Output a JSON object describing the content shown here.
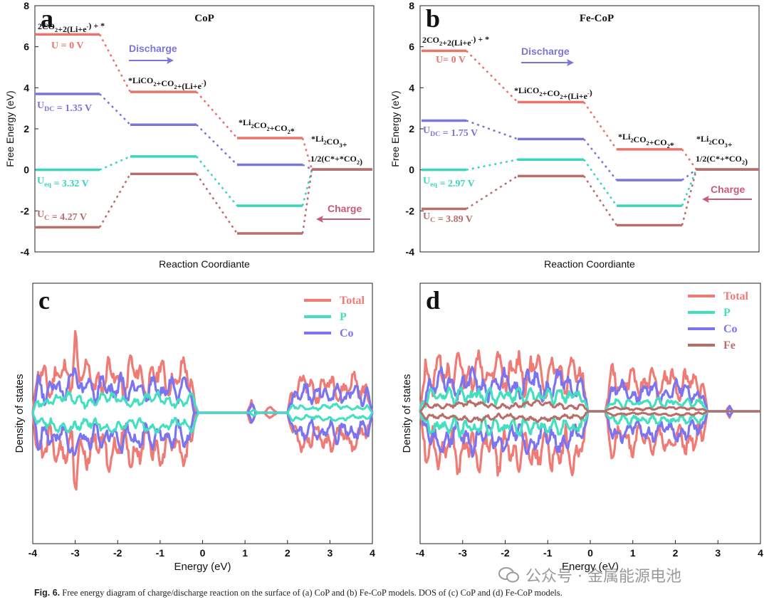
{
  "caption": {
    "label": "Fig. 6.",
    "text": "Free energy diagram of charge/discharge reaction on the surface of (a) CoP and (b) Fe-CoP models. DOS of (c) CoP and (d) Fe-CoP models."
  },
  "watermark": "公众号 · 金属能源电池",
  "colors": {
    "red": "#e8746c",
    "blue": "#7a75d8",
    "teal": "#38d6be",
    "brown": "#b86f6a",
    "total": "#f07a74",
    "p": "#43e0c0",
    "co": "#7b74f2",
    "fe": "#b86e68"
  },
  "chart_data": [
    {
      "panel": "a",
      "type": "free-energy-diagram",
      "title": "CoP",
      "xlabel": "Reaction Coordiante",
      "ylabel": "Free Energy (eV)",
      "ylim": [
        -4,
        8
      ],
      "yticks": [
        "-4",
        "-2",
        "0",
        "2",
        "4",
        "6",
        "8"
      ],
      "step_labels": [
        "2CO2+2(Li+e-) + *",
        "*LiCO2+CO2+(Li+e-)",
        "*Li2CO2+CO2*",
        "*Li2CO3+ 1/2(C*+*CO2)"
      ],
      "series": [
        {
          "name": "U = 0 V",
          "color": "red",
          "values": [
            6.6,
            3.8,
            1.55,
            0.02
          ]
        },
        {
          "name": "UDC = 1.35 V",
          "color": "blue",
          "values": [
            3.7,
            2.2,
            0.25,
            0.02
          ]
        },
        {
          "name": "Ueq = 3.32 V",
          "color": "teal",
          "values": [
            0.0,
            0.65,
            -1.75,
            0.02
          ]
        },
        {
          "name": "UC = 4.27 V",
          "color": "brown",
          "values": [
            -2.8,
            -0.2,
            -3.1,
            0.02
          ]
        }
      ],
      "arrows": {
        "discharge": "Discharge",
        "charge": "Charge"
      }
    },
    {
      "panel": "b",
      "type": "free-energy-diagram",
      "title": "Fe-CoP",
      "xlabel": "Reaction Coordiante",
      "ylabel": "Free Energy (eV)",
      "ylim": [
        -4,
        8
      ],
      "yticks": [
        "-4",
        "-2",
        "0",
        "2",
        "4",
        "6",
        "8"
      ],
      "step_labels": [
        "2CO2+2(Li+e-) + *",
        "*LiCO2+CO2+(Li+e-)",
        "*Li2CO2+CO2*",
        "*Li2CO3+ 1/2(C*+*CO2)"
      ],
      "series": [
        {
          "name": "U= 0 V",
          "color": "red",
          "values": [
            5.8,
            3.3,
            1.0,
            0.02
          ]
        },
        {
          "name": "UDC = 1.75 V",
          "color": "blue",
          "values": [
            2.4,
            1.5,
            -0.5,
            0.02
          ]
        },
        {
          "name": "Ueq = 2.97 V",
          "color": "teal",
          "values": [
            0.0,
            0.5,
            -1.75,
            0.02
          ]
        },
        {
          "name": "UC = 3.89 V",
          "color": "brown",
          "values": [
            -1.9,
            -0.3,
            -2.7,
            0.02
          ]
        }
      ],
      "arrows": {
        "discharge": "Discharge",
        "charge": "Charge"
      }
    },
    {
      "panel": "c",
      "type": "line",
      "title": "",
      "xlabel": "Energy (eV)",
      "ylabel": "Density of states",
      "xlim": [
        -4,
        4
      ],
      "xticks": [
        "-4",
        "-3",
        "-2",
        "-1",
        "0",
        "1",
        "2",
        "3",
        "4"
      ],
      "legend": [
        "Total",
        "P",
        "Co"
      ]
    },
    {
      "panel": "d",
      "type": "line",
      "title": "",
      "xlabel": "Energy (eV)",
      "ylabel": "Density of states",
      "xlim": [
        -4,
        4
      ],
      "xticks": [
        "-4",
        "-3",
        "-2",
        "-1",
        "0",
        "1",
        "2",
        "3",
        "4"
      ],
      "legend": [
        "Total",
        "P",
        "Co",
        "Fe"
      ]
    }
  ]
}
